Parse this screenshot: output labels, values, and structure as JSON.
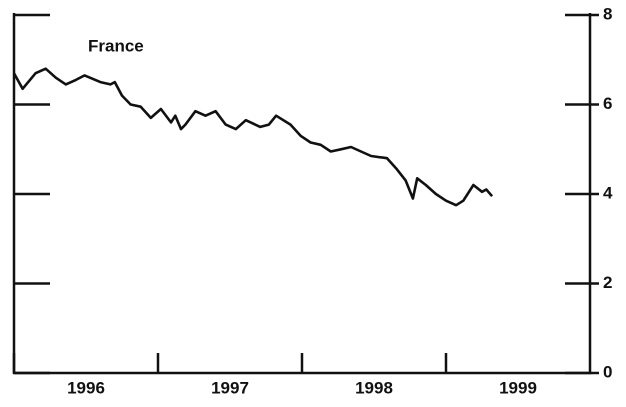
{
  "chart_data": {
    "type": "line",
    "title": "France",
    "x": [
      1996.0,
      1996.06,
      1996.15,
      1996.22,
      1996.29,
      1996.36,
      1996.43,
      1996.49,
      1996.6,
      1996.67,
      1996.7,
      1996.75,
      1996.81,
      1996.88,
      1996.95,
      1997.02,
      1997.09,
      1997.12,
      1997.16,
      1997.19,
      1997.26,
      1997.33,
      1997.4,
      1997.47,
      1997.54,
      1997.61,
      1997.71,
      1997.77,
      1997.82,
      1997.92,
      1997.99,
      1998.06,
      1998.13,
      1998.2,
      1998.27,
      1998.34,
      1998.41,
      1998.48,
      1998.59,
      1998.66,
      1998.72,
      1998.77,
      1998.8,
      1998.86,
      1998.93,
      1999.0,
      1999.07,
      1999.12,
      1999.19,
      1999.25,
      1999.28,
      1999.32
    ],
    "series": [
      {
        "color": "#111111",
        "values": [
          6.7,
          6.35,
          6.7,
          6.8,
          6.6,
          6.45,
          6.55,
          6.65,
          6.5,
          6.45,
          6.5,
          6.2,
          6.0,
          5.95,
          5.7,
          5.9,
          5.6,
          5.75,
          5.45,
          5.55,
          5.85,
          5.75,
          5.85,
          5.55,
          5.45,
          5.65,
          5.5,
          5.55,
          5.75,
          5.55,
          5.3,
          5.15,
          5.1,
          4.95,
          5.0,
          5.05,
          4.95,
          4.85,
          4.8,
          4.55,
          4.3,
          3.9,
          4.35,
          4.2,
          4.0,
          3.85,
          3.75,
          3.85,
          4.2,
          4.05,
          4.1,
          3.95
        ]
      }
    ],
    "xlim": [
      1996,
      2000
    ],
    "xticks": [
      1996,
      1997,
      1998,
      1999
    ],
    "ylim": [
      0,
      8
    ],
    "yticks": [
      0,
      2,
      4,
      6,
      8
    ],
    "y_axis_side": "right"
  }
}
